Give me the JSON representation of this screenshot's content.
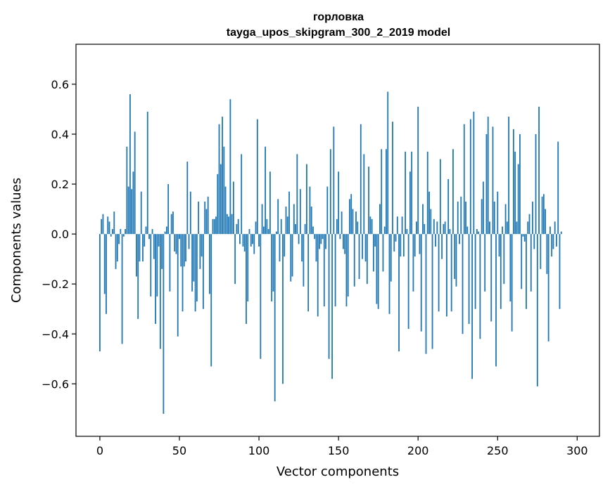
{
  "chart_data": {
    "type": "bar",
    "title": "горловка",
    "subtitle": "tayga_upos_skipgram_300_2_2019 model",
    "xlabel": "Vector components",
    "ylabel": "Components values",
    "xlim": [
      -15,
      314
    ],
    "ylim": [
      -0.81,
      0.76
    ],
    "xticks": [
      0,
      50,
      100,
      150,
      200,
      250,
      300
    ],
    "xtick_labels": [
      "0",
      "50",
      "100",
      "150",
      "200",
      "250",
      "300"
    ],
    "yticks": [
      -0.6,
      -0.4,
      -0.2,
      0.0,
      0.2,
      0.4,
      0.6
    ],
    "ytick_labels": [
      "−0.6",
      "−0.4",
      "−0.2",
      "0.0",
      "0.2",
      "0.4",
      "0.6"
    ],
    "bar_color": "#1f77b4",
    "values": [
      -0.47,
      0.06,
      0.08,
      -0.24,
      -0.32,
      0.07,
      0.05,
      -0.01,
      0.02,
      0.09,
      -0.14,
      -0.11,
      -0.04,
      0.02,
      -0.44,
      -0.01,
      0.02,
      0.35,
      0.19,
      0.56,
      0.18,
      0.25,
      0.41,
      -0.17,
      -0.34,
      -0.11,
      0.17,
      -0.11,
      -0.05,
      0.03,
      0.49,
      -0.02,
      -0.25,
      0.02,
      -0.1,
      -0.36,
      -0.25,
      -0.05,
      -0.46,
      -0.14,
      -0.72,
      0.01,
      0.03,
      0.2,
      -0.23,
      0.08,
      0.09,
      -0.07,
      -0.08,
      -0.41,
      -0.02,
      -0.13,
      -0.31,
      -0.13,
      -0.11,
      0.29,
      -0.06,
      0.17,
      -0.23,
      -0.19,
      -0.31,
      -0.27,
      0.13,
      -0.14,
      -0.09,
      -0.3,
      0.13,
      0.1,
      0.15,
      -0.24,
      -0.53,
      0.06,
      0.06,
      0.07,
      0.24,
      0.44,
      0.28,
      0.47,
      0.35,
      0.19,
      0.08,
      0.07,
      0.54,
      0.08,
      0.21,
      -0.2,
      0.04,
      0.06,
      -0.04,
      0.32,
      -0.05,
      -0.07,
      -0.36,
      -0.27,
      0.02,
      -0.05,
      -0.04,
      -0.08,
      0.05,
      0.46,
      -0.05,
      -0.5,
      0.12,
      0.03,
      0.35,
      0.06,
      0.02,
      0.25,
      -0.27,
      -0.23,
      -0.67,
      0.01,
      0.14,
      -0.11,
      0.06,
      -0.6,
      -0.09,
      0.11,
      0.07,
      0.17,
      -0.19,
      -0.17,
      0.12,
      0.04,
      0.32,
      -0.04,
      0.18,
      -0.11,
      -0.21,
      0.04,
      0.28,
      -0.31,
      0.19,
      0.11,
      0.03,
      -0.02,
      -0.11,
      -0.33,
      -0.06,
      -0.04,
      -0.02,
      -0.29,
      -0.06,
      0.19,
      -0.5,
      0.34,
      -0.58,
      0.43,
      -0.29,
      0.06,
      0.25,
      -0.02,
      0.09,
      -0.06,
      -0.08,
      -0.29,
      -0.25,
      0.14,
      0.16,
      0.1,
      -0.21,
      0.09,
      0.05,
      -0.18,
      0.44,
      -0.1,
      0.32,
      -0.11,
      -0.2,
      0.27,
      0.07,
      0.06,
      -0.15,
      -0.05,
      -0.28,
      -0.3,
      0.12,
      0.34,
      -0.15,
      0.03,
      0.34,
      0.57,
      -0.32,
      -0.19,
      0.45,
      -0.07,
      -0.03,
      0.07,
      -0.47,
      -0.09,
      0.07,
      -0.09,
      0.33,
      0.02,
      -0.38,
      0.25,
      0.33,
      -0.23,
      -0.09,
      0.05,
      0.51,
      -0.08,
      -0.39,
      0.12,
      0.04,
      -0.48,
      0.33,
      0.17,
      0.1,
      -0.46,
      0.06,
      -0.05,
      0.05,
      -0.31,
      0.3,
      -0.1,
      0.04,
      0.05,
      -0.33,
      0.22,
      0.02,
      -0.31,
      0.34,
      -0.18,
      -0.21,
      0.13,
      -0.04,
      0.15,
      -0.4,
      0.44,
      0.13,
      0.03,
      -0.36,
      0.46,
      -0.58,
      0.49,
      -0.3,
      0.02,
      0.01,
      -0.42,
      0.14,
      0.21,
      -0.23,
      0.4,
      0.47,
      0.05,
      -0.35,
      0.43,
      0.13,
      -0.53,
      0.17,
      -0.09,
      -0.3,
      0.03,
      -0.2,
      0.12,
      0.05,
      0.47,
      -0.27,
      -0.39,
      0.42,
      0.33,
      0.05,
      0.28,
      0.4,
      -0.22,
      -0.01,
      -0.03,
      -0.3,
      0.05,
      0.08,
      -0.23,
      0.13,
      -0.06,
      0.4,
      -0.61,
      0.51,
      -0.14,
      0.15,
      0.16,
      0.1,
      -0.16,
      -0.43,
      0.03,
      -0.09,
      -0.06,
      0.05,
      -0.05,
      0.37,
      -0.3,
      0.01
    ]
  }
}
